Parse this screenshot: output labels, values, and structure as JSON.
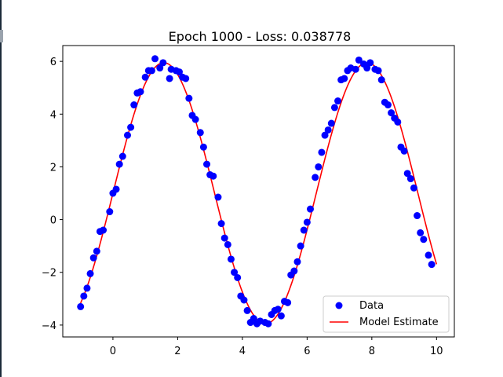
{
  "chart_data": {
    "type": "scatter",
    "title": "Epoch 1000 - Loss: 0.038778",
    "xlabel": "",
    "ylabel": "",
    "xlim": [
      -1.55,
      10.55
    ],
    "ylim": [
      -4.45,
      6.6
    ],
    "xticks": [
      0,
      2,
      4,
      6,
      8,
      10
    ],
    "yticks": [
      -4,
      -2,
      0,
      2,
      4,
      6
    ],
    "grid": false,
    "legend_position": "lower-right",
    "colors": {
      "data": "#0000ff",
      "model": "#ff0000",
      "axes": "#000000"
    },
    "series": [
      {
        "name": "Data",
        "kind": "scatter",
        "points": [
          [
            -1.0,
            -3.3
          ],
          [
            -0.9,
            -2.9
          ],
          [
            -0.8,
            -2.6
          ],
          [
            -0.7,
            -2.05
          ],
          [
            -0.6,
            -1.45
          ],
          [
            -0.5,
            -1.2
          ],
          [
            -0.4,
            -0.45
          ],
          [
            -0.3,
            -0.4
          ],
          [
            -0.1,
            0.3
          ],
          [
            0.0,
            1.0
          ],
          [
            0.1,
            1.15
          ],
          [
            0.2,
            2.1
          ],
          [
            0.3,
            2.4
          ],
          [
            0.45,
            3.2
          ],
          [
            0.55,
            3.5
          ],
          [
            0.65,
            4.35
          ],
          [
            0.75,
            4.8
          ],
          [
            0.85,
            4.85
          ],
          [
            1.0,
            5.4
          ],
          [
            1.1,
            5.65
          ],
          [
            1.2,
            5.65
          ],
          [
            1.3,
            6.1
          ],
          [
            1.45,
            5.75
          ],
          [
            1.55,
            5.95
          ],
          [
            1.75,
            5.35
          ],
          [
            1.8,
            5.7
          ],
          [
            1.95,
            5.65
          ],
          [
            2.05,
            5.6
          ],
          [
            2.15,
            5.4
          ],
          [
            2.25,
            5.35
          ],
          [
            2.35,
            4.6
          ],
          [
            2.45,
            3.95
          ],
          [
            2.55,
            3.8
          ],
          [
            2.7,
            3.3
          ],
          [
            2.8,
            2.75
          ],
          [
            2.9,
            2.1
          ],
          [
            3.0,
            1.7
          ],
          [
            3.1,
            1.65
          ],
          [
            3.25,
            0.85
          ],
          [
            3.35,
            -0.15
          ],
          [
            3.45,
            -0.7
          ],
          [
            3.55,
            -0.95
          ],
          [
            3.65,
            -1.5
          ],
          [
            3.75,
            -2.0
          ],
          [
            3.85,
            -2.2
          ],
          [
            3.95,
            -2.9
          ],
          [
            4.05,
            -3.05
          ],
          [
            4.15,
            -3.45
          ],
          [
            4.25,
            -3.9
          ],
          [
            4.35,
            -3.75
          ],
          [
            4.45,
            -3.95
          ],
          [
            4.55,
            -3.85
          ],
          [
            4.7,
            -3.9
          ],
          [
            4.8,
            -3.95
          ],
          [
            4.9,
            -3.6
          ],
          [
            5.0,
            -3.45
          ],
          [
            5.1,
            -3.4
          ],
          [
            5.2,
            -3.65
          ],
          [
            5.3,
            -3.1
          ],
          [
            5.4,
            -3.15
          ],
          [
            5.5,
            -2.1
          ],
          [
            5.6,
            -1.95
          ],
          [
            5.7,
            -1.6
          ],
          [
            5.8,
            -1.0
          ],
          [
            5.9,
            -0.4
          ],
          [
            6.0,
            -0.1
          ],
          [
            6.1,
            0.4
          ],
          [
            6.25,
            1.6
          ],
          [
            6.35,
            2.0
          ],
          [
            6.45,
            2.55
          ],
          [
            6.55,
            3.2
          ],
          [
            6.65,
            3.4
          ],
          [
            6.75,
            3.65
          ],
          [
            6.85,
            4.25
          ],
          [
            6.95,
            4.5
          ],
          [
            7.05,
            5.3
          ],
          [
            7.15,
            5.35
          ],
          [
            7.25,
            5.65
          ],
          [
            7.35,
            5.75
          ],
          [
            7.5,
            5.7
          ],
          [
            7.6,
            6.05
          ],
          [
            7.75,
            5.9
          ],
          [
            7.85,
            5.75
          ],
          [
            7.95,
            5.95
          ],
          [
            8.1,
            5.7
          ],
          [
            8.2,
            5.65
          ],
          [
            8.3,
            5.3
          ],
          [
            8.4,
            4.45
          ],
          [
            8.5,
            4.35
          ],
          [
            8.6,
            4.05
          ],
          [
            8.7,
            3.85
          ],
          [
            8.8,
            3.7
          ],
          [
            8.9,
            2.75
          ],
          [
            9.0,
            2.6
          ],
          [
            9.1,
            1.75
          ],
          [
            9.2,
            1.55
          ],
          [
            9.3,
            1.2
          ],
          [
            9.4,
            0.15
          ],
          [
            9.5,
            -0.5
          ],
          [
            9.6,
            -0.75
          ],
          [
            9.75,
            -1.35
          ],
          [
            9.85,
            -1.7
          ]
        ]
      },
      {
        "name": "Model Estimate",
        "kind": "line",
        "function": {
          "amplitude": 4.95,
          "frequency": 1.0,
          "phase": 0.0,
          "offset": 1.0,
          "x_start": -1.0,
          "x_end": 10.0
        }
      }
    ]
  }
}
